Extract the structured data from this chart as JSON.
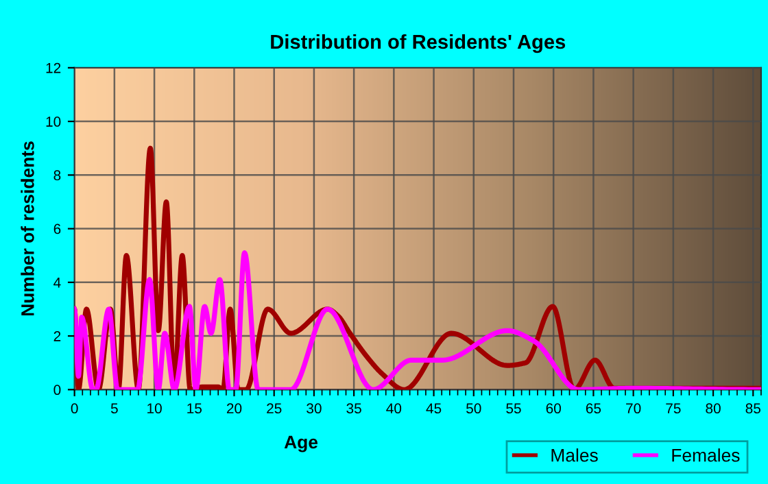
{
  "chart_data": {
    "type": "line",
    "title": "Distribution of Residents' Ages",
    "xlabel": "Age",
    "ylabel": "Number of residents",
    "xlim": [
      0,
      86
    ],
    "xticks": [
      0,
      5,
      10,
      15,
      20,
      25,
      30,
      35,
      40,
      45,
      50,
      55,
      60,
      65,
      70,
      75,
      80,
      85
    ],
    "ylim": [
      0,
      12
    ],
    "yticks": [
      0,
      2,
      4,
      6,
      8,
      10,
      12
    ],
    "grid": true,
    "legend": "bottom right",
    "marker": "none",
    "line_style": "solid",
    "series": [
      {
        "name": "Males",
        "color": "#a00000",
        "x": [
          0,
          0.5,
          1.5,
          3,
          4.5,
          5.5,
          6.5,
          8,
          9.5,
          10.5,
          11.5,
          12.5,
          13.5,
          14.5,
          16,
          18,
          18.6,
          19.5,
          20.5,
          21.5,
          24.2,
          27.1,
          31.7,
          33,
          34.5,
          36.7,
          38.5,
          41.3,
          47.2,
          54.2,
          56.5,
          59.9,
          62.6,
          65.2,
          67.6,
          86
        ],
        "values": [
          3,
          0,
          3,
          0,
          3,
          0,
          5,
          0,
          9,
          2.2,
          7,
          0,
          5,
          0,
          0.1,
          0.1,
          0,
          3,
          0,
          0,
          3,
          2.1,
          3,
          2.75,
          2.1,
          1.2,
          0.6,
          0,
          2.1,
          0.9,
          1,
          3.1,
          0,
          1.1,
          0.05,
          0.05
        ]
      },
      {
        "name": "Females",
        "color": "#ff00ff",
        "x": [
          0,
          0.5,
          0.9,
          2.3,
          2.7,
          4.3,
          5.4,
          7.9,
          9.4,
          10.5,
          11.3,
          12.5,
          14.4,
          15.2,
          16.3,
          17.1,
          18.2,
          19.4,
          20.2,
          21.3,
          23,
          27.1,
          31.7,
          37.4,
          42.2,
          46.1,
          54.2,
          57.6,
          63.1,
          70,
          86
        ],
        "values": [
          3,
          0.5,
          2.7,
          0,
          0,
          3,
          0,
          0,
          4.1,
          0,
          2.1,
          0,
          3.1,
          0,
          3.1,
          2.1,
          4.1,
          0,
          0,
          5.1,
          0,
          0,
          3,
          0,
          1.1,
          1.1,
          2.2,
          1.8,
          0,
          0.05,
          0
        ]
      }
    ]
  }
}
